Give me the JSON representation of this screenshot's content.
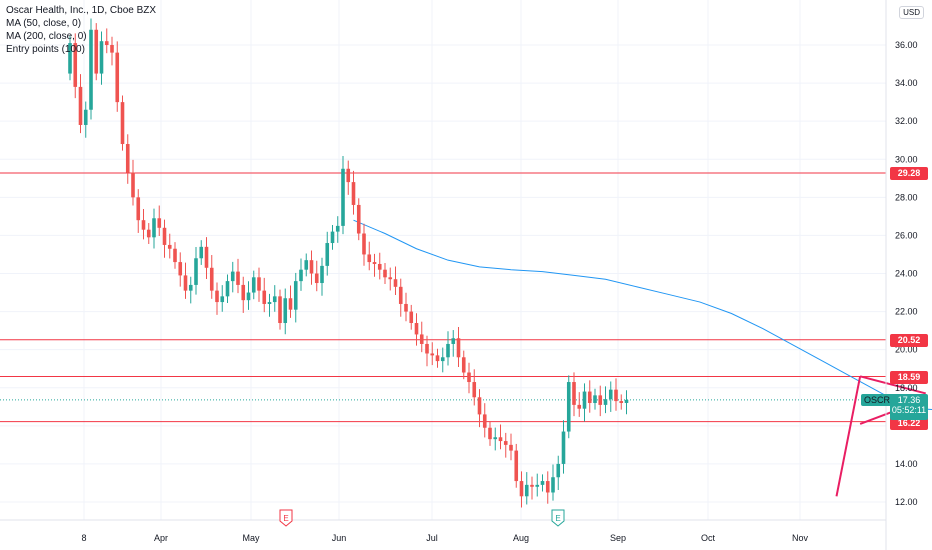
{
  "legend": {
    "title": "Oscar Health, Inc., 1D, Cboe BZX",
    "indicators": [
      "MA (50, close, 0)",
      "MA (200, close, 0)",
      "Entry points (100)"
    ]
  },
  "currency": "USD",
  "symbol": "OSCR",
  "last_price": "17.36",
  "countdown": "05:52:11",
  "price_tags": [
    "29.28",
    "20.52",
    "18.59",
    "16.22"
  ],
  "colors": {
    "up": "#26a69a",
    "down": "#ef5350",
    "level": "#f23645",
    "ma": "#2196f3",
    "triangle": "#e91e63"
  },
  "event_markers": [
    "E",
    "E"
  ],
  "chart_data": {
    "type": "candlestick",
    "title": "Oscar Health, Inc., 1D, Cboe BZX",
    "x_tick_labels": [
      "8",
      "Apr",
      "May",
      "Jun",
      "Jul",
      "Aug",
      "Sep",
      "Oct",
      "Nov"
    ],
    "y_tick_labels": [
      "12.00",
      "14.00",
      "16.00",
      "18.00",
      "20.00",
      "22.00",
      "24.00",
      "26.00",
      "28.00",
      "30.00",
      "32.00",
      "34.00",
      "36.00"
    ],
    "ylim": [
      11.0,
      38.3
    ],
    "horizontal_levels": [
      29.28,
      20.52,
      18.59,
      16.22
    ],
    "closes": [
      36.1,
      33.8,
      31.8,
      32.6,
      36.8,
      34.5,
      36.2,
      36.0,
      35.6,
      33.0,
      30.8,
      29.3,
      28.0,
      26.8,
      26.3,
      25.9,
      26.9,
      26.4,
      25.5,
      25.3,
      24.6,
      23.9,
      23.1,
      23.4,
      24.8,
      25.4,
      24.3,
      23.1,
      22.5,
      22.8,
      23.6,
      24.1,
      23.4,
      22.6,
      23.0,
      23.8,
      23.1,
      22.4,
      22.5,
      22.8,
      21.4,
      22.7,
      22.1,
      23.6,
      24.2,
      24.7,
      24.0,
      23.5,
      24.4,
      25.6,
      26.2,
      26.5,
      29.5,
      28.8,
      27.6,
      26.1,
      25.0,
      24.6,
      24.5,
      24.2,
      23.8,
      23.7,
      23.3,
      22.4,
      22.0,
      21.4,
      20.8,
      20.3,
      19.8,
      19.7,
      19.4,
      19.6,
      20.3,
      20.6,
      19.6,
      18.8,
      18.3,
      17.5,
      16.6,
      15.9,
      15.3,
      15.4,
      15.2,
      15.0,
      14.7,
      13.1,
      12.3,
      12.9,
      12.8,
      12.9,
      13.1,
      12.5,
      13.3,
      14.0,
      15.7,
      18.3,
      17.1,
      16.9,
      17.8,
      17.2,
      17.6,
      17.1,
      17.4,
      17.9,
      17.3,
      17.2,
      17.36
    ],
    "ma50": [
      [
        54,
        26.8
      ],
      [
        60,
        26.1
      ],
      [
        66,
        25.3
      ],
      [
        72,
        24.7
      ],
      [
        78,
        24.35
      ],
      [
        84,
        24.2
      ],
      [
        90,
        24.1
      ],
      [
        96,
        23.9
      ],
      [
        102,
        23.7
      ],
      [
        108,
        23.3
      ],
      [
        114,
        22.9
      ],
      [
        120,
        22.5
      ],
      [
        126,
        21.9
      ],
      [
        132,
        21.1
      ],
      [
        138,
        20.2
      ],
      [
        144,
        19.3
      ],
      [
        150,
        18.4
      ],
      [
        156,
        17.5
      ],
      [
        162,
        16.9
      ],
      [
        167,
        16.8
      ]
    ],
    "triangle": {
      "upper": [
        [
          150.5,
          18.6
        ],
        [
          163,
          17.7
        ]
      ],
      "lower": [
        [
          150.5,
          16.1
        ],
        [
          163,
          17.4
        ]
      ],
      "breakout": [
        [
          146,
          12.3
        ],
        [
          150.5,
          18.6
        ]
      ]
    }
  }
}
